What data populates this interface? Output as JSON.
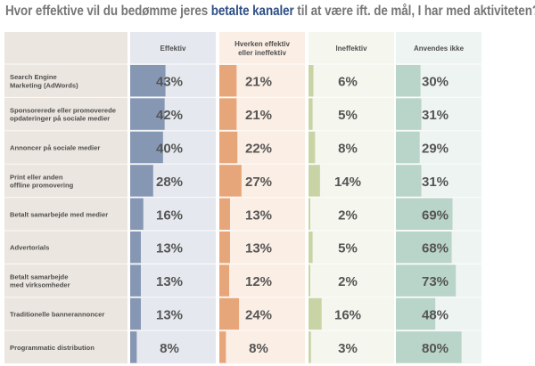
{
  "title": {
    "prefix": "Hvor effektive vil du bedømme jeres ",
    "highlight": "betalte kanaler",
    "suffix": " til at være ift. de mål, I har med aktiviteten?"
  },
  "chart_data": {
    "type": "table",
    "title": "Hvor effektive vil du bedømme jeres betalte kanaler til at være ift. de mål, I har med aktiviteten?",
    "columns": [
      {
        "name": "Effektiv",
        "bar_color": "#8697b4",
        "bg_color": "#e5e8ee"
      },
      {
        "name": "Hverken effektiv\neller ineffektiv",
        "bar_color": "#e7a679",
        "bg_color": "#fbeee5"
      },
      {
        "name": "Ineffektiv",
        "bar_color": "#c9d4a6",
        "bg_color": "#f5f6ee"
      },
      {
        "name": "Anvendes ikke",
        "bar_color": "#b9d4c8",
        "bg_color": "#eef4f1"
      }
    ],
    "rows": [
      {
        "label": "Search Engine\nMarketing (AdWords)",
        "values": [
          43,
          21,
          6,
          30
        ]
      },
      {
        "label": "Sponsorerede eller promoverede\nopdateringer på sociale medier",
        "values": [
          42,
          21,
          5,
          31
        ]
      },
      {
        "label": "Annoncer på sociale medier",
        "values": [
          40,
          22,
          8,
          29
        ]
      },
      {
        "label": "Print eller anden\noffline promovering",
        "values": [
          28,
          27,
          14,
          31
        ]
      },
      {
        "label": "Betalt samarbejde med medier",
        "values": [
          16,
          13,
          2,
          69
        ]
      },
      {
        "label": "Advertorials",
        "values": [
          13,
          13,
          5,
          68
        ]
      },
      {
        "label": "Betalt samarbejde\nmed virksomheder",
        "values": [
          13,
          12,
          2,
          73
        ]
      },
      {
        "label": "Traditionelle bannerannoncer",
        "values": [
          13,
          24,
          16,
          48
        ]
      },
      {
        "label": "Programmatic distribution",
        "values": [
          8,
          8,
          3,
          80
        ]
      }
    ],
    "value_suffix": "%",
    "value_range": [
      0,
      100
    ]
  }
}
